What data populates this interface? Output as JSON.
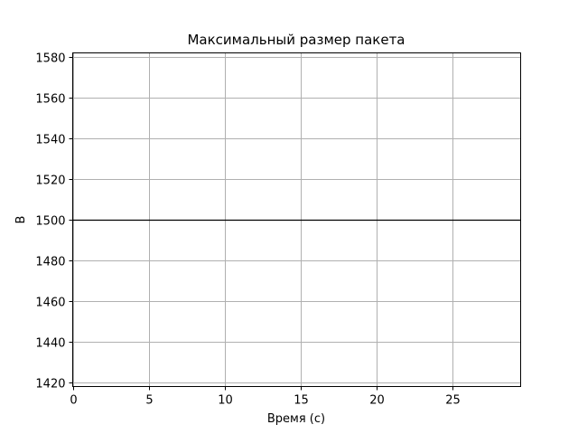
{
  "chart_data": {
    "type": "line",
    "title": "Максимальный размер пакета",
    "xlabel": "Время (с)",
    "ylabel": "B",
    "xlim": [
      0,
      29.5
    ],
    "ylim": [
      1418,
      1582
    ],
    "xticks": [
      0,
      5,
      10,
      15,
      20,
      25
    ],
    "yticks": [
      1420,
      1440,
      1460,
      1480,
      1500,
      1520,
      1540,
      1560,
      1580
    ],
    "grid": true,
    "series": [
      {
        "x": [
          0,
          29.5
        ],
        "y": [
          1500,
          1500
        ],
        "color": "#000000"
      }
    ]
  }
}
